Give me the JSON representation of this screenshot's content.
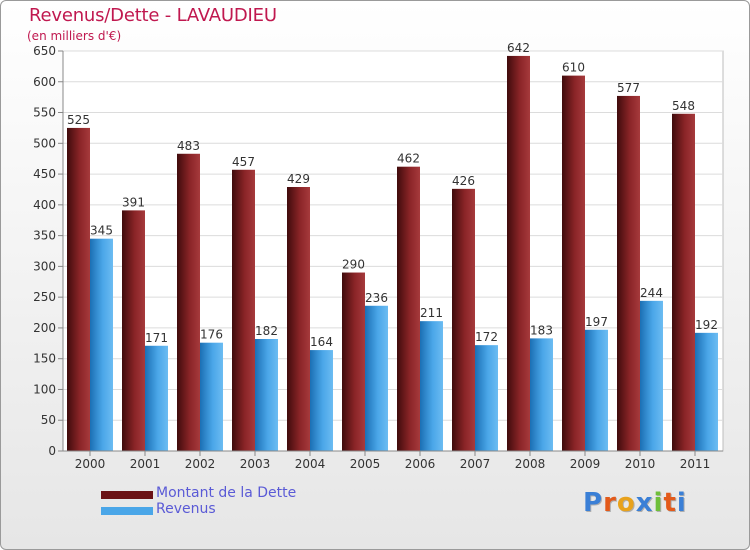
{
  "header": {
    "title": "Revenus/Dette - LAVAUDIEU",
    "subtitle": "(en milliers d'€)"
  },
  "brand": {
    "text": "Proxiti",
    "colors": [
      "#3a7fd6",
      "#e35a1a",
      "#e8a21c",
      "#3a7fd6",
      "#6fbf3a",
      "#e35a1a",
      "#3a7fd6"
    ]
  },
  "chart_data": {
    "type": "bar",
    "categories": [
      "2000",
      "2001",
      "2002",
      "2003",
      "2004",
      "2005",
      "2006",
      "2007",
      "2008",
      "2009",
      "2010",
      "2011"
    ],
    "series": [
      {
        "name": "Montant de la Dette",
        "color": "#7a1a1c",
        "values": [
          525,
          391,
          483,
          457,
          429,
          290,
          462,
          426,
          642,
          610,
          577,
          548
        ]
      },
      {
        "name": "Revenus",
        "color": "#4aa6e8",
        "values": [
          345,
          171,
          176,
          182,
          164,
          236,
          211,
          172,
          183,
          197,
          244,
          192
        ]
      }
    ],
    "yticks": [
      0,
      50,
      100,
      150,
      200,
      250,
      300,
      350,
      400,
      450,
      500,
      550,
      600,
      650
    ],
    "ylim": [
      0,
      650
    ],
    "grid": true,
    "legend_position": "bottom-left"
  }
}
